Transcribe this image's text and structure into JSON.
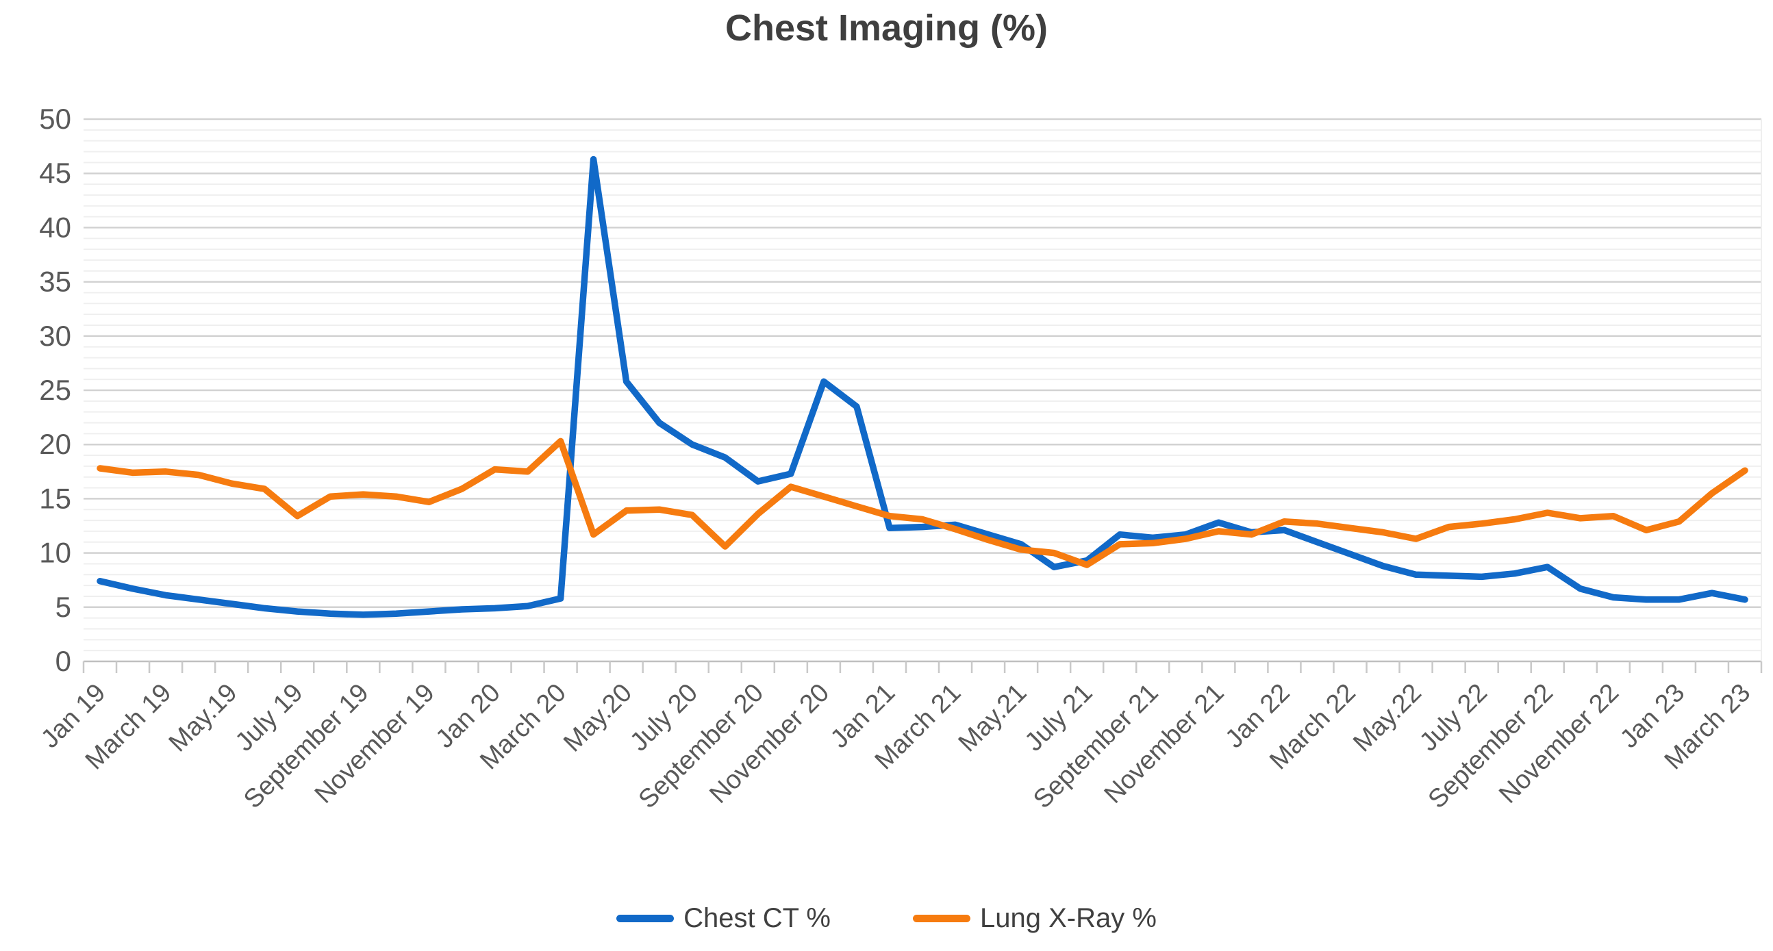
{
  "chart_data": {
    "type": "line",
    "title": "Chest Imaging (%)",
    "x_tick_labels": [
      "Jan 19",
      "March 19",
      "May.19",
      "July 19",
      "September 19",
      "November 19",
      "Jan 20",
      "March 20",
      "May.20",
      "July 20",
      "September 20",
      "November 20",
      "Jan 21",
      "March 21",
      "May.21",
      "July 21",
      "September 21",
      "November 21",
      "Jan 22",
      "March 22",
      "May.22",
      "July 22",
      "September 22",
      "November 22",
      "Jan 23",
      "March 23"
    ],
    "label_every_n_points": 2,
    "n_points": 51,
    "ylim": [
      0,
      50
    ],
    "y_major_step": 5,
    "y_minor_step": 1,
    "grid": "horizontal major+minor",
    "legend_position": "bottom",
    "series": [
      {
        "name": "Chest CT %",
        "color": "#1169c8",
        "values": [
          7.4,
          6.7,
          6.1,
          5.7,
          5.3,
          4.9,
          4.6,
          4.4,
          4.3,
          4.4,
          4.6,
          4.8,
          4.9,
          5.1,
          5.8,
          46.3,
          25.8,
          22.0,
          20.0,
          18.8,
          16.6,
          17.3,
          25.8,
          23.5,
          12.3,
          12.4,
          12.6,
          11.7,
          10.8,
          8.7,
          9.3,
          11.7,
          11.4,
          11.7,
          12.8,
          11.9,
          12.1,
          11.0,
          9.9,
          8.8,
          8.0,
          7.9,
          7.8,
          8.1,
          8.7,
          6.7,
          5.9,
          5.7,
          5.7,
          6.3,
          5.7
        ]
      },
      {
        "name": "Lung X-Ray %",
        "color": "#f67b0f",
        "values": [
          17.8,
          17.4,
          17.5,
          17.2,
          16.4,
          15.9,
          13.4,
          15.2,
          15.4,
          15.2,
          14.7,
          15.9,
          17.7,
          17.5,
          20.3,
          11.7,
          13.9,
          14.0,
          13.5,
          10.6,
          13.6,
          16.1,
          15.2,
          14.3,
          13.4,
          13.1,
          12.2,
          11.2,
          10.3,
          10.0,
          8.9,
          10.8,
          10.9,
          11.3,
          12.0,
          11.7,
          12.9,
          12.7,
          12.3,
          11.9,
          11.3,
          12.4,
          12.7,
          13.1,
          13.7,
          13.2,
          13.4,
          12.1,
          12.9,
          15.5,
          17.6
        ]
      }
    ]
  },
  "colors": {
    "title_text": "#3f3f3f",
    "axis_text": "#595959",
    "major_grid": "#d2d2d2",
    "minor_grid": "#efefef",
    "axis_line": "#bfbfbf",
    "tick": "#c9c9c9",
    "background": "#ffffff"
  }
}
